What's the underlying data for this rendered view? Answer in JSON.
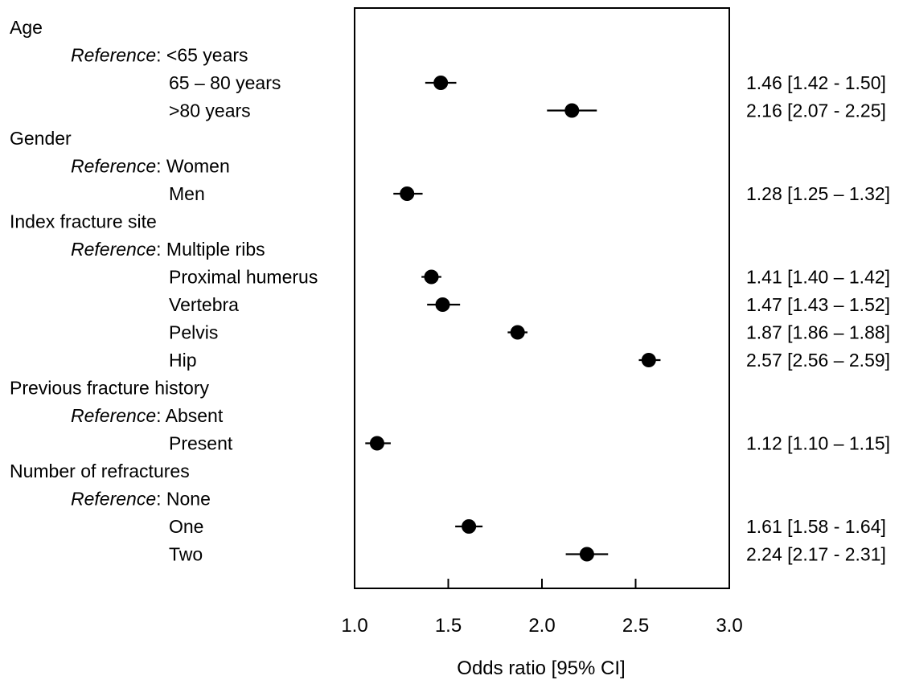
{
  "chart_data": {
    "type": "forest",
    "xlabel": "Odds ratio [95% CI]",
    "xlim": [
      1.0,
      3.0
    ],
    "xticks": [
      "1.0",
      "1.5",
      "2.0",
      "2.5",
      "3.0"
    ],
    "reference_word": "Reference",
    "rows": [
      {
        "kind": "group",
        "label": "Age"
      },
      {
        "kind": "reference",
        "label": ": <65 years"
      },
      {
        "kind": "item",
        "label": "65 – 80 years",
        "or": 1.46,
        "lo": 1.42,
        "hi": 1.5,
        "ci_text": "1.46 [1.42 - 1.50]"
      },
      {
        "kind": "item",
        "label": ">80 years",
        "or": 2.16,
        "lo": 2.07,
        "hi": 2.25,
        "ci_text": "2.16 [2.07 - 2.25]"
      },
      {
        "kind": "group",
        "label": "Gender"
      },
      {
        "kind": "reference",
        "label": ": Women"
      },
      {
        "kind": "item",
        "label": "Men",
        "or": 1.28,
        "lo": 1.25,
        "hi": 1.32,
        "ci_text": "1.28 [1.25 – 1.32]"
      },
      {
        "kind": "group",
        "label": "Index fracture site"
      },
      {
        "kind": "reference",
        "label": ": Multiple ribs"
      },
      {
        "kind": "item",
        "label": "Proximal humerus",
        "or": 1.41,
        "lo": 1.4,
        "hi": 1.42,
        "ci_text": "1.41 [1.40 – 1.42]"
      },
      {
        "kind": "item",
        "label": "Vertebra",
        "or": 1.47,
        "lo": 1.43,
        "hi": 1.52,
        "ci_text": "1.47 [1.43 – 1.52]"
      },
      {
        "kind": "item",
        "label": "Pelvis",
        "or": 1.87,
        "lo": 1.86,
        "hi": 1.88,
        "ci_text": "1.87 [1.86 – 1.88]"
      },
      {
        "kind": "item",
        "label": "Hip",
        "or": 2.57,
        "lo": 2.56,
        "hi": 2.59,
        "ci_text": "2.57 [2.56 – 2.59]"
      },
      {
        "kind": "group",
        "label": "Previous fracture history"
      },
      {
        "kind": "reference",
        "label": ": Absent"
      },
      {
        "kind": "item",
        "label": "Present",
        "or": 1.12,
        "lo": 1.1,
        "hi": 1.15,
        "ci_text": "1.12 [1.10 – 1.15]"
      },
      {
        "kind": "group",
        "label": "Number of refractures"
      },
      {
        "kind": "reference",
        "label": ": None"
      },
      {
        "kind": "item",
        "label": "One",
        "or": 1.61,
        "lo": 1.58,
        "hi": 1.64,
        "ci_text": "1.61 [1.58 - 1.64]"
      },
      {
        "kind": "item",
        "label": "Two",
        "or": 2.24,
        "lo": 2.17,
        "hi": 2.31,
        "ci_text": "2.24 [2.17 - 2.31]"
      }
    ]
  }
}
